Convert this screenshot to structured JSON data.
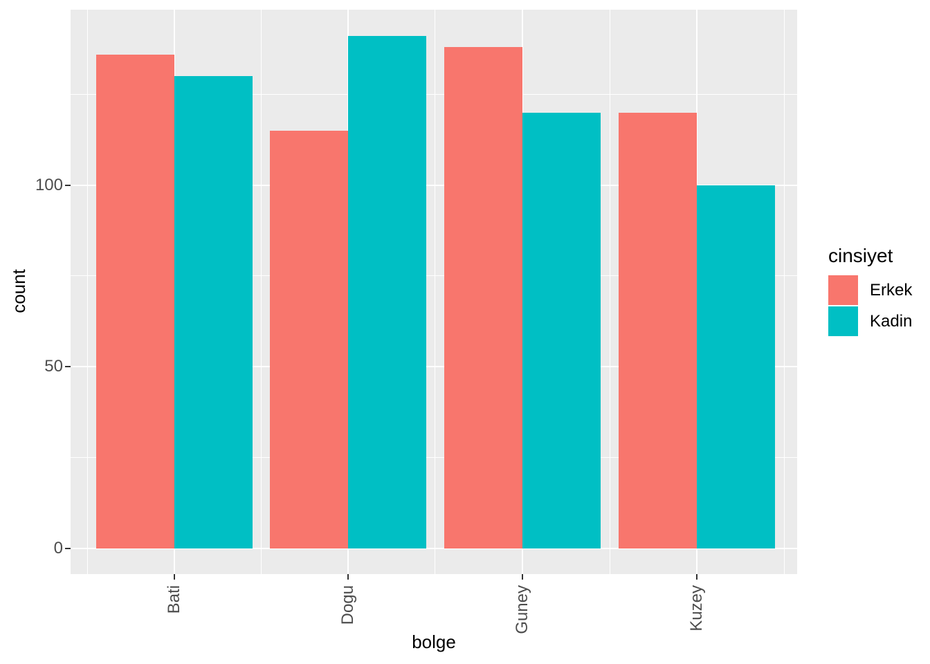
{
  "chart_data": {
    "type": "bar",
    "title": "",
    "xlabel": "bolge",
    "ylabel": "count",
    "categories": [
      "Bati",
      "Dogu",
      "Guney",
      "Kuzey"
    ],
    "series": [
      {
        "name": "Erkek",
        "color": "#F8766D",
        "values": [
          136,
          115,
          138,
          120
        ]
      },
      {
        "name": "Kadin",
        "color": "#00BFC4",
        "values": [
          130,
          141,
          120,
          100
        ]
      }
    ],
    "legend": {
      "title": "cinsiyet",
      "position": "right"
    },
    "axes": {
      "y_ticks": [
        0,
        50,
        100
      ],
      "y_minor_ticks": [
        25,
        75,
        125
      ],
      "ylim": [
        -7,
        148.5
      ],
      "x_tick_label_rotation_deg": 90
    },
    "layout_hints": {
      "bar_layout": "dodge",
      "grid": "major+minor",
      "panel_bg": "#EBEBEB",
      "grid_color": "#FFFFFF",
      "tick_text_color": "#4D4D4D"
    }
  }
}
